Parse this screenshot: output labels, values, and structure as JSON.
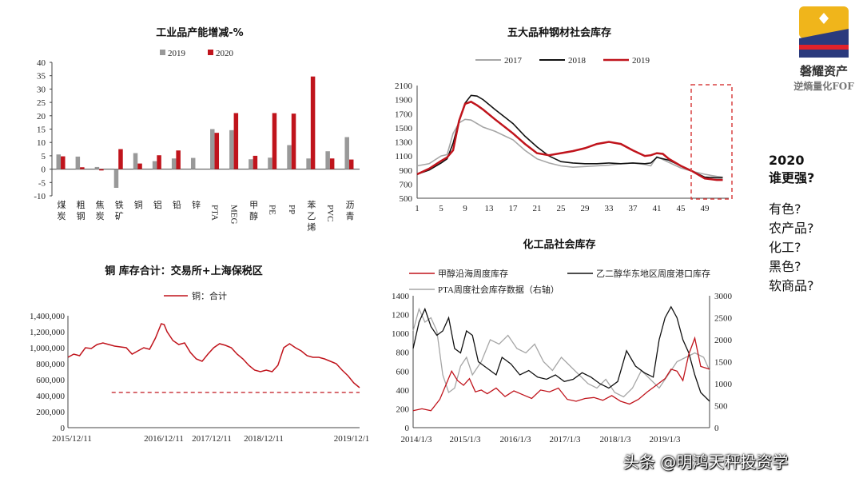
{
  "chart_data": [
    {
      "type": "bar",
      "title": "工业品产能增减-%",
      "categories": [
        "煤炭",
        "粗钢",
        "焦炭",
        "铁矿",
        "铜",
        "铝",
        "铅",
        "锌",
        "PTA",
        "MEG",
        "甲醇",
        "PE",
        "PP",
        "苯乙烯",
        "PVC",
        "沥青"
      ],
      "series": [
        {
          "name": "2019",
          "color": "#999999",
          "values": [
            5.5,
            4.7,
            0.8,
            -7,
            6,
            3,
            4,
            4.2,
            15,
            14.6,
            3.7,
            4.3,
            9,
            4,
            6.7,
            12
          ]
        },
        {
          "name": "2020",
          "color": "#c0141c",
          "values": [
            4.8,
            0.7,
            -0.5,
            7.5,
            2.1,
            5.2,
            7,
            null,
            13.6,
            21,
            5,
            21,
            20.8,
            34.7,
            4,
            3.6
          ]
        }
      ],
      "ylim": [
        -10,
        40
      ],
      "yticks": [
        -10,
        -5,
        0,
        5,
        10,
        15,
        20,
        25,
        30,
        35,
        40
      ],
      "legend": "top"
    },
    {
      "type": "line",
      "title": "五大品种钢材社会库存",
      "ylim": [
        500,
        2100
      ],
      "yticks": [
        500,
        700,
        900,
        1100,
        1300,
        1500,
        1700,
        1900,
        2100
      ],
      "xticks": [
        "1",
        "5",
        "9",
        "13",
        "17",
        "21",
        "25",
        "29",
        "33",
        "37",
        "41",
        "45",
        "49"
      ],
      "xlim": [
        1,
        53
      ],
      "series": [
        {
          "name": "2017",
          "color": "#a6a6a6",
          "x": [
            1,
            3,
            5,
            6,
            7,
            8,
            9,
            10,
            12,
            14,
            17,
            19,
            21,
            23,
            25,
            27,
            29,
            31,
            33,
            35,
            37,
            39,
            40,
            41,
            43,
            45,
            47,
            49,
            51,
            52
          ],
          "values": [
            960,
            990,
            1100,
            1120,
            1420,
            1570,
            1620,
            1610,
            1510,
            1450,
            1330,
            1180,
            1060,
            1000,
            960,
            940,
            950,
            960,
            970,
            990,
            1000,
            980,
            960,
            1090,
            1010,
            930,
            880,
            840,
            810,
            800
          ]
        },
        {
          "name": "2018",
          "color": "#111111",
          "x": [
            1,
            3,
            5,
            6,
            7,
            8,
            9,
            10,
            11,
            12,
            14,
            17,
            19,
            21,
            23,
            25,
            27,
            29,
            31,
            33,
            35,
            37,
            39,
            40,
            41,
            43,
            45,
            47,
            49,
            51,
            52
          ],
          "values": [
            840,
            900,
            1000,
            1060,
            1280,
            1600,
            1850,
            1960,
            1950,
            1900,
            1760,
            1560,
            1380,
            1230,
            1100,
            1020,
            1000,
            990,
            990,
            1000,
            990,
            1000,
            990,
            1000,
            1080,
            1040,
            960,
            880,
            800,
            790,
            790
          ]
        },
        {
          "name": "2019",
          "color": "#c0141c",
          "x": [
            1,
            3,
            5,
            6,
            7,
            8,
            9,
            10,
            11,
            12,
            14,
            17,
            19,
            21,
            23,
            25,
            27,
            29,
            31,
            33,
            35,
            37,
            39,
            40,
            41,
            42,
            43,
            45,
            47,
            49,
            51,
            52
          ],
          "values": [
            840,
            920,
            1030,
            1080,
            1180,
            1600,
            1840,
            1870,
            1820,
            1760,
            1620,
            1420,
            1270,
            1140,
            1110,
            1140,
            1170,
            1210,
            1270,
            1300,
            1270,
            1180,
            1100,
            1110,
            1140,
            1130,
            1060,
            960,
            880,
            780,
            760,
            760
          ]
        }
      ],
      "legend": "top"
    },
    {
      "type": "line",
      "title": "铜 库存合计：交易所+上海保税区",
      "ylim": [
        0,
        1400000
      ],
      "yticks": [
        "0",
        "200,000",
        "400,000",
        "600,000",
        "800,000",
        "1,000,000",
        "1,200,000",
        "1,400,000"
      ],
      "xticks": [
        "2015/12/11",
        "2016/12/11",
        "2017/12/11",
        "2018/12/11",
        "2019/12/1"
      ],
      "series": [
        {
          "name": "铜：合计",
          "color": "#c0141c",
          "x": [
            0,
            0.02,
            0.04,
            0.06,
            0.08,
            0.1,
            0.12,
            0.14,
            0.16,
            0.18,
            0.2,
            0.22,
            0.24,
            0.26,
            0.28,
            0.3,
            0.32,
            0.33,
            0.34,
            0.36,
            0.38,
            0.4,
            0.42,
            0.44,
            0.46,
            0.48,
            0.5,
            0.52,
            0.54,
            0.56,
            0.58,
            0.6,
            0.62,
            0.64,
            0.66,
            0.68,
            0.7,
            0.72,
            0.74,
            0.76,
            0.78,
            0.8,
            0.82,
            0.84,
            0.86,
            0.88,
            0.9,
            0.92,
            0.94,
            0.96,
            0.98,
            1.0
          ],
          "values": [
            880000,
            920000,
            900000,
            1000000,
            990000,
            1040000,
            1060000,
            1040000,
            1020000,
            1010000,
            1000000,
            920000,
            960000,
            1000000,
            980000,
            1120000,
            1300000,
            1290000,
            1200000,
            1090000,
            1040000,
            1060000,
            940000,
            860000,
            830000,
            920000,
            1000000,
            1050000,
            1030000,
            1000000,
            920000,
            860000,
            780000,
            720000,
            700000,
            720000,
            700000,
            780000,
            1000000,
            1050000,
            1000000,
            960000,
            900000,
            880000,
            880000,
            860000,
            830000,
            800000,
            720000,
            650000,
            560000,
            500000
          ]
        },
        {
          "name": "dashed-ref",
          "color": "#c0141c",
          "x": [
            0.15,
            1.0
          ],
          "values": [
            440000,
            440000
          ]
        }
      ],
      "legend": "top"
    },
    {
      "type": "line",
      "title": "化工品社会库存",
      "ylim_left": [
        0,
        1400
      ],
      "yticks_left": [
        0,
        200,
        400,
        600,
        800,
        1000,
        1200,
        1400
      ],
      "ylim_right": [
        0,
        3000
      ],
      "yticks_right": [
        0,
        500,
        1000,
        1500,
        2000,
        2500,
        3000
      ],
      "xticks": [
        "2014/1/3",
        "2015/1/3",
        "2016/1/3",
        "2017/1/3",
        "2018/1/3",
        "2019/1/3"
      ],
      "series": [
        {
          "name": "甲醇沿海周度库存",
          "axis": "left",
          "color": "#c0141c",
          "x": [
            0,
            0.03,
            0.06,
            0.09,
            0.11,
            0.13,
            0.15,
            0.17,
            0.19,
            0.21,
            0.23,
            0.25,
            0.28,
            0.31,
            0.34,
            0.37,
            0.4,
            0.43,
            0.46,
            0.49,
            0.52,
            0.55,
            0.58,
            0.61,
            0.64,
            0.67,
            0.7,
            0.73,
            0.76,
            0.79,
            0.82,
            0.85,
            0.87,
            0.89,
            0.91,
            0.93,
            0.95,
            0.97,
            1.0
          ],
          "values": [
            180,
            200,
            180,
            300,
            450,
            600,
            500,
            450,
            520,
            380,
            400,
            360,
            420,
            330,
            390,
            350,
            310,
            400,
            380,
            420,
            300,
            280,
            310,
            320,
            290,
            340,
            280,
            250,
            300,
            380,
            450,
            520,
            620,
            600,
            500,
            780,
            950,
            650,
            620
          ]
        },
        {
          "name": "乙二醇华东地区周度港口库存",
          "axis": "right",
          "color": "#111111",
          "x": [
            0,
            0.02,
            0.04,
            0.06,
            0.08,
            0.1,
            0.12,
            0.14,
            0.16,
            0.18,
            0.2,
            0.22,
            0.24,
            0.26,
            0.28,
            0.3,
            0.33,
            0.36,
            0.39,
            0.42,
            0.45,
            0.48,
            0.51,
            0.54,
            0.57,
            0.6,
            0.63,
            0.66,
            0.69,
            0.72,
            0.75,
            0.78,
            0.81,
            0.83,
            0.85,
            0.87,
            0.89,
            0.91,
            0.93,
            0.95,
            0.97,
            1.0
          ],
          "values": [
            1800,
            2400,
            2700,
            2300,
            2100,
            2200,
            2500,
            1800,
            1700,
            2200,
            2100,
            1500,
            1400,
            1300,
            1200,
            1600,
            1450,
            1200,
            1300,
            1150,
            1100,
            1200,
            1050,
            1100,
            1250,
            1150,
            1000,
            900,
            1050,
            1750,
            1400,
            1250,
            1150,
            2000,
            2500,
            2750,
            2500,
            2000,
            1700,
            1200,
            800,
            600
          ]
        },
        {
          "name": "PTA周度社会库存数据（右轴）",
          "axis": "right",
          "color": "#a6a6a6",
          "x": [
            0,
            0.02,
            0.04,
            0.06,
            0.08,
            0.1,
            0.12,
            0.14,
            0.16,
            0.18,
            0.2,
            0.23,
            0.26,
            0.29,
            0.32,
            0.35,
            0.38,
            0.41,
            0.44,
            0.47,
            0.5,
            0.53,
            0.56,
            0.59,
            0.62,
            0.65,
            0.68,
            0.71,
            0.74,
            0.77,
            0.8,
            0.83,
            0.86,
            0.89,
            0.92,
            0.95,
            0.98,
            1.0
          ],
          "values": [
            2200,
            2700,
            2400,
            2500,
            2200,
            1200,
            800,
            900,
            1400,
            1600,
            1200,
            1500,
            2000,
            1900,
            2100,
            1800,
            1700,
            1900,
            1500,
            1300,
            1600,
            1400,
            1200,
            1000,
            900,
            1100,
            800,
            700,
            900,
            1300,
            1100,
            900,
            1200,
            1500,
            1600,
            1700,
            1600,
            1300
          ]
        }
      ],
      "legend": "top"
    }
  ],
  "side_panel": {
    "heading_year": "2020",
    "heading_q": "谁更强?",
    "items": [
      "有色?",
      "农产品?",
      "化工?",
      "黑色?",
      "软商品?"
    ]
  },
  "logo": {
    "name": "磐耀资产",
    "subtitle": "逆熵量化FOF"
  },
  "watermark": "头条 @明鸿天秤投资学"
}
